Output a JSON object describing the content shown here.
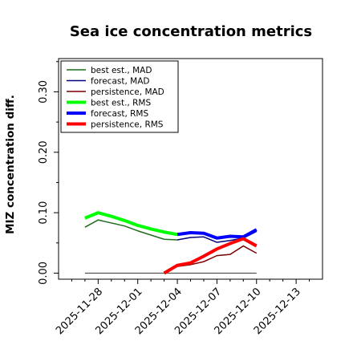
{
  "chart_data": {
    "type": "line",
    "title": "Sea ice concentration metrics",
    "ylabel": "MIZ concentration diff.",
    "xlabel": "",
    "ylim": [
      -0.01,
      0.355
    ],
    "yticks": [
      0.0,
      0.1,
      0.2,
      0.3
    ],
    "ytick_labels": [
      "0.00",
      "0.10",
      "0.20",
      "0.30"
    ],
    "xlim_day_index": [
      -2,
      18
    ],
    "xtick_day_index": [
      1,
      4,
      7,
      10,
      13,
      16
    ],
    "xtick_labels": [
      "2025-11-28",
      "2025-12-01",
      "2025-12-04",
      "2025-12-07",
      "2025-12-10",
      "2025-12-13"
    ],
    "highlight_tick_label": "2025-12-04",
    "highlight_color": "#1a7f1a",
    "grid": false,
    "legend_position": "upper-left",
    "series": [
      {
        "name": "best est., MAD",
        "color": "#1f6b1f",
        "width": 1.5,
        "x": [
          "2025-11-27",
          "2025-11-28",
          "2025-11-29",
          "2025-11-30",
          "2025-12-01",
          "2025-12-02",
          "2025-12-03",
          "2025-12-04"
        ],
        "y": [
          0.076,
          0.088,
          0.083,
          0.078,
          0.07,
          0.063,
          0.056,
          0.055
        ]
      },
      {
        "name": "forecast,  MAD",
        "color": "#00007a",
        "width": 1.5,
        "x": [
          "2025-12-04",
          "2025-12-05",
          "2025-12-06",
          "2025-12-07",
          "2025-12-08",
          "2025-12-09",
          "2025-12-10"
        ],
        "y": [
          0.055,
          0.059,
          0.06,
          0.051,
          0.054,
          0.058,
          0.069
        ]
      },
      {
        "name": "persistence, MAD",
        "color": "#7a0000",
        "width": 1.5,
        "x": [
          "2025-12-03",
          "2025-12-04",
          "2025-12-05",
          "2025-12-06",
          "2025-12-07",
          "2025-12-08",
          "2025-12-09",
          "2025-12-10"
        ],
        "y": [
          0.0,
          0.011,
          0.014,
          0.019,
          0.029,
          0.031,
          0.045,
          0.033
        ]
      },
      {
        "name": "best est., RMS",
        "color": "#00ff00",
        "width": 4,
        "x": [
          "2025-11-27",
          "2025-11-28",
          "2025-11-29",
          "2025-11-30",
          "2025-12-01",
          "2025-12-02",
          "2025-12-03",
          "2025-12-04"
        ],
        "y": [
          0.091,
          0.1,
          0.094,
          0.087,
          0.079,
          0.073,
          0.068,
          0.064
        ]
      },
      {
        "name": "forecast,  RMS",
        "color": "#0000ff",
        "width": 4,
        "x": [
          "2025-12-04",
          "2025-12-05",
          "2025-12-06",
          "2025-12-07",
          "2025-12-08",
          "2025-12-09",
          "2025-12-10"
        ],
        "y": [
          0.064,
          0.067,
          0.066,
          0.058,
          0.061,
          0.06,
          0.072
        ]
      },
      {
        "name": "persistence, RMS",
        "color": "#ff0000",
        "width": 4,
        "x": [
          "2025-12-03",
          "2025-12-04",
          "2025-12-05",
          "2025-12-06",
          "2025-12-07",
          "2025-12-08",
          "2025-12-09",
          "2025-12-10"
        ],
        "y": [
          0.0,
          0.013,
          0.017,
          0.028,
          0.04,
          0.049,
          0.057,
          0.045
        ]
      }
    ],
    "reference_line": {
      "y": 0.0,
      "x_start": "2025-11-27",
      "x_end": "2025-12-10",
      "color": "#555555"
    }
  }
}
